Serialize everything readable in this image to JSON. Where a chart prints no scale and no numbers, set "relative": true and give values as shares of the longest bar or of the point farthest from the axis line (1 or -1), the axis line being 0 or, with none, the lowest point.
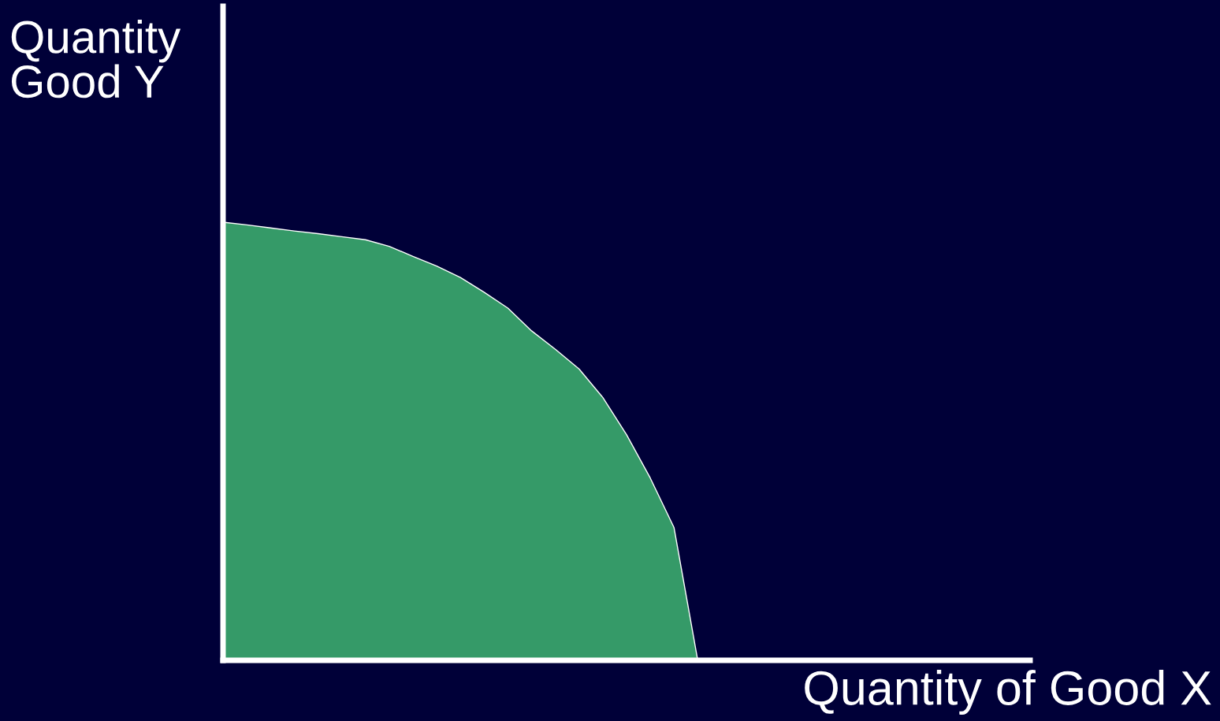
{
  "chart_data": {
    "type": "area",
    "relative": true,
    "xlabel": "Quantity of Good X",
    "ylabel": "Quantity\nGood Y",
    "categories": [
      null,
      null,
      null,
      null,
      null,
      null,
      null,
      null,
      null,
      null,
      null,
      null,
      null,
      null,
      null,
      null,
      null,
      null,
      null,
      null,
      null,
      null,
      null,
      null,
      null,
      null,
      null,
      null,
      null,
      null,
      null,
      null,
      null,
      null,
      null
    ],
    "series": [
      {
        "color": "#359a68",
        "values": [
          1.0,
          0.994,
          0.987,
          0.98,
          0.974,
          0.967,
          0.96,
          0.945,
          0.922,
          0.9,
          0.874,
          0.84,
          0.804,
          0.752,
          0.71,
          0.665,
          0.6,
          0.515,
          0.416,
          0.303,
          0,
          0,
          0,
          0,
          0,
          0,
          0,
          0,
          0,
          0,
          0,
          0,
          0,
          0,
          0
        ]
      }
    ]
  }
}
